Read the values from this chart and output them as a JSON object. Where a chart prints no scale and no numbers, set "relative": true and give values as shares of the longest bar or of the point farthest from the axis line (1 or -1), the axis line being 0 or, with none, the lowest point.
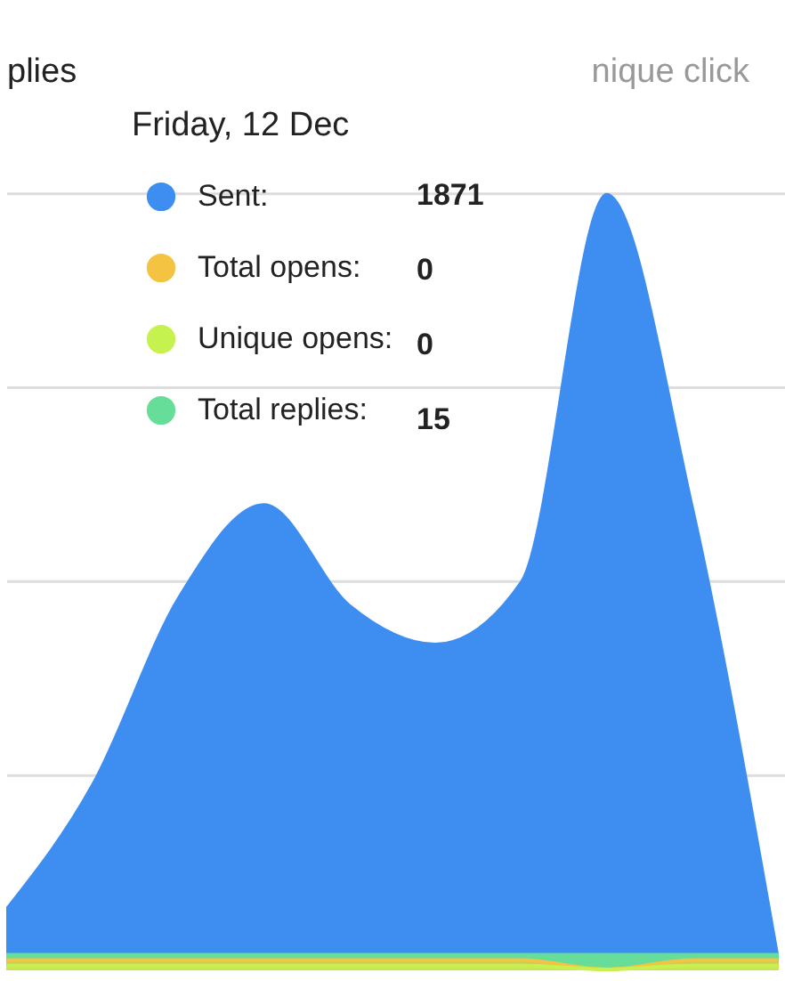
{
  "chart_data": {
    "type": "area",
    "relative": true,
    "grid": "y",
    "legend": "top left",
    "categories": [
      null,
      null,
      null,
      null,
      null,
      null,
      null,
      null,
      null,
      null
    ],
    "series": [
      {
        "name": "Sent:",
        "color": "#3d8ef0",
        "values": [
          0.08,
          0.24,
          0.48,
          0.6,
          0.47,
          0.42,
          0.5,
          1,
          0.6,
          0.02
        ]
      },
      {
        "name": "Total opens:",
        "color": "#f5c342",
        "values": [
          0.012,
          0.012,
          0.012,
          0.012,
          0.012,
          0.012,
          0.012,
          0,
          0.012,
          0.012
        ]
      },
      {
        "name": "Unique opens:",
        "color": "#c5f24f",
        "values": [
          0.005,
          0.005,
          0.005,
          0.005,
          0.005,
          0.005,
          0.005,
          0,
          0.005,
          0.005
        ]
      },
      {
        "name": "Total replies:",
        "color": "#66dd99",
        "values": [
          0.02,
          0.02,
          0.02,
          0.02,
          0.02,
          0.02,
          0.02,
          0.02,
          0.02,
          0.02
        ]
      }
    ],
    "annotations": [
      "plies",
      "nique click",
      "Friday, 12 Dec",
      "1871",
      "0",
      "0",
      "15"
    ]
  }
}
